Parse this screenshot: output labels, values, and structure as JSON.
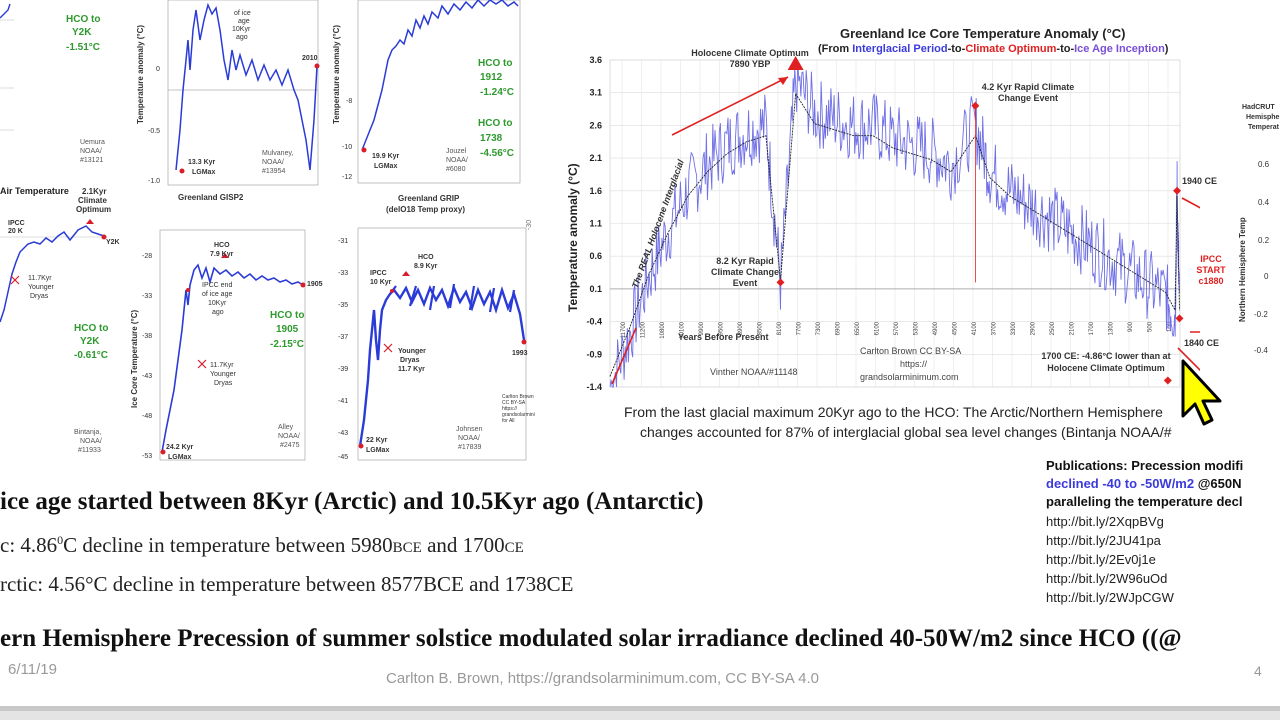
{
  "slide": {
    "date": "6/11/19",
    "footer": "Carlton B. Brown, https://grandsolarminimum.com, CC BY-SA 4.0",
    "page_number": "4"
  },
  "left_panels": {
    "p1": {
      "hco_label": "HCO to",
      "hco_target": "Y2K",
      "hco_value": "-1.51°C",
      "source1": "Uemura",
      "source2": "NOAA/",
      "source3": "#13121"
    },
    "p2": {
      "title": "Air Temperature",
      "kyr": "2.1Kyr",
      "climate": "Climate",
      "optimum": "Optimum",
      "ipcc": "IPCC",
      "ipcc2": "20 K",
      "y2k": "Y2K",
      "yd1": "11.7Kyr",
      "yd2": "Younger",
      "yd3": "Dryas",
      "hco_label": "HCO to",
      "hco_target": "Y2K",
      "hco_value": "-0.61°C",
      "source1": "Bintanja,",
      "source2": "NOAA/",
      "source3": "#11933"
    },
    "p3": {
      "ylabel": "Temperature anomaly (°C)",
      "t1": "of ice",
      "t2": "age",
      "t3": "10Kyr",
      "t4": "ago",
      "lgm1": "13.3 Kyr",
      "lgm2": "LGMax",
      "end": "2010",
      "src1": "Mulvaney,",
      "src2": "NOAA/",
      "src3": "#13954",
      "y1": "0",
      "y2": "-0.5",
      "y3": "-1.0"
    },
    "p4": {
      "ylabel": "Temperature anomaly (°C)",
      "hco1": "HCO to",
      "hco1b": "1912",
      "hco1v": "-1.24°C",
      "hco2": "HCO to",
      "hco2b": "1738",
      "hco2v": "-4.56°C",
      "lgm1": "19.9 Kyr",
      "lgm2": "LGMax",
      "src1": "Jouzel",
      "src2": "NOAA/",
      "src3": "#6080",
      "y1": "-8",
      "y2": "-10",
      "y3": "-12"
    },
    "p5": {
      "title": "Greenland GISP2",
      "ylabel": "Ice Core Temperature (°C)",
      "hco": "HCO",
      "hco_age": "7.9 Kyr",
      "ipcc": "IPCC end",
      "ipcc2": "of ice age",
      "ipcc3": "10Kyr",
      "ipcc4": "ago",
      "yd1": "11.7Kyr",
      "yd2": "Younger",
      "yd3": "Dryas",
      "end": "1905",
      "hco_to": "HCO to",
      "hco_to2": "1905",
      "hco_val": "-2.15°C",
      "lgm1": "24.2 Kyr",
      "lgm2": "LGMax",
      "src1": "Alley",
      "src2": "NOAA/",
      "src3": "#2475",
      "yticks": [
        "-28",
        "-33",
        "-38",
        "-43",
        "-48",
        "-53"
      ]
    },
    "p6": {
      "title1": "Greenland GRIP",
      "title2": "(delO18 Temp proxy)",
      "hco": "HCO",
      "hco_age": "8.9 Kyr",
      "ipcc": "IPCC",
      "ipcc2": "10 Kyr",
      "yd1": "Younger",
      "yd2": "Dryas",
      "yd3": "11.7 Kyr",
      "end": "1993",
      "lgm1": "22 Kyr",
      "lgm2": "LGMax",
      "src1": "Johnsen",
      "src2": "NOAA/",
      "src3": "#17839",
      "credit": "Carlton Brown CC BY-SA https:// grandsolarminimum.com for All",
      "yticks": [
        "-31",
        "-33",
        "-35",
        "-37",
        "-39",
        "-41",
        "-43",
        "-45"
      ]
    }
  },
  "main_chart": {
    "title": "Greenland Ice Core Temperature Anomaly (°C)",
    "subtitle_pre": "(From ",
    "subtitle_a": "Interglacial Period",
    "subtitle_to1": "-to-",
    "subtitle_b": "Climate Optimum",
    "subtitle_to2": "-to-",
    "subtitle_c": "Ice Age Inception",
    "subtitle_post": ")",
    "ylabel": "Temperature anomaly (°C)",
    "xlabel": "Years Before Present",
    "annotations": {
      "hco": "Holocene Climate Optimum 7890 YBP",
      "rapid42": "4.2 Kyr Rapid Climate Change Event",
      "rapid82": "8.2 Kyr Rapid Climate Change Event",
      "interglacial": "The REAL Holocene Interglacial",
      "credit1": "Carlton Brown CC BY-SA",
      "credit2": "https://",
      "credit3": "grandsolarminimum.com",
      "source": "Vinther NOAA/#11148",
      "ce1700": "1700 CE: -4.86°C lower than at Holocene Climate Optimum",
      "ce1940": "1940 CE",
      "ce1840": "1840 CE",
      "ipcc": "IPCC START c1880"
    }
  },
  "chart_data": {
    "type": "line",
    "title": "Greenland Ice Core Temperature Anomaly (°C)",
    "xlabel": "Years Before Present",
    "ylabel": "Temperature anomaly (°C)",
    "ylim": [
      -1.4,
      3.6
    ],
    "yticks": [
      "3.6",
      "3.1",
      "2.6",
      "2.1",
      "1.6",
      "1.1",
      "0.6",
      "0.1",
      "-0.4",
      "-0.9",
      "-1.4"
    ],
    "xticks": [
      "11700",
      "11200",
      "10800",
      "10100",
      "9900",
      "9500",
      "8900",
      "8500",
      "8100",
      "7700",
      "7300",
      "6900",
      "6500",
      "6100",
      "5700",
      "5300",
      "4900",
      "4500",
      "4100",
      "3700",
      "3300",
      "2900",
      "2500",
      "2100",
      "1700",
      "1300",
      "900",
      "500",
      "100"
    ],
    "x": [
      11700,
      11300,
      10900,
      10500,
      10100,
      9700,
      9300,
      8900,
      8500,
      8200,
      7890,
      7500,
      7100,
      6700,
      6300,
      5900,
      5500,
      5100,
      4700,
      4200,
      3900,
      3500,
      3100,
      2700,
      2300,
      1900,
      1500,
      1100,
      700,
      300,
      100,
      60,
      10
    ],
    "series": [
      {
        "values": [
          -1.4,
          -0.6,
          0.3,
          1.0,
          1.6,
          2.0,
          2.3,
          2.5,
          2.6,
          0.2,
          3.3,
          2.8,
          2.7,
          2.6,
          2.6,
          2.4,
          2.3,
          2.2,
          2.0,
          2.6,
          1.9,
          1.6,
          1.4,
          1.2,
          1.0,
          0.8,
          0.6,
          0.4,
          0.2,
          0.0,
          -0.3,
          1.6,
          -0.3
        ]
      }
    ],
    "annotations": [
      "Holocene Climate Optimum 7890 YBP",
      "4.2 Kyr Rapid Climate Change Event",
      "8.2 Kyr Rapid Climate Change Event",
      "1940 CE",
      "1840 CE",
      "IPCC START c1880",
      "1700 CE: -4.86°C lower than at Holocene Climate Optimum"
    ]
  },
  "right_panel": {
    "t1": "HadCRUT",
    "t2": "Hemisphe",
    "t3": "Temperat",
    "ylabel": "Northern Hemisphere Temp",
    "yticks": [
      "0.6",
      "0.4",
      "0.2",
      "0",
      "-0.2",
      "-0.4"
    ]
  },
  "caption": {
    "line1": "From the last glacial maximum 20Kyr ago to the HCO: The Arctic/Northern Hemisphere",
    "line2": "changes accounted for 87% of interglacial global sea level changes (Bintanja NOAA/#"
  },
  "publications": {
    "heading": "Publications: Precession modifi",
    "line2_blue": "declined -40 to -50W/m2",
    "line2_rest": " @650N",
    "line3": "paralleling the temperature decl",
    "links": [
      "http://bit.ly/2XqpBVg",
      "http://bit.ly/2JU41pa",
      "http://bit.ly/2Ev0j1e",
      "http://bit.ly/2W96uOd",
      "http://bit.ly/2WJpCGW"
    ]
  },
  "body_text": {
    "heading": "ice age started between 8Kyr (Arctic) and 10.5Kyr ago (Antarctic)",
    "line2_a": "c: 4.86",
    "line2_sup": "0",
    "line2_b": "C decline in temperature between 5980",
    "line2_bce": "BCE",
    "line2_c": " and 1700",
    "line2_ce": "CE",
    "line3": "rctic: 4.56°C decline in temperature between 8577BCE and 1738CE",
    "line4": "ern Hemisphere Precession of summer solstice modulated solar irradiance declined 40-50W/m2 since HCO ((@"
  },
  "colors": {
    "blue": "#3b3bdc",
    "red": "#e02020",
    "green": "#2e9a2e",
    "purple": "#7a4fd6",
    "magenta": "#d42b7b"
  }
}
